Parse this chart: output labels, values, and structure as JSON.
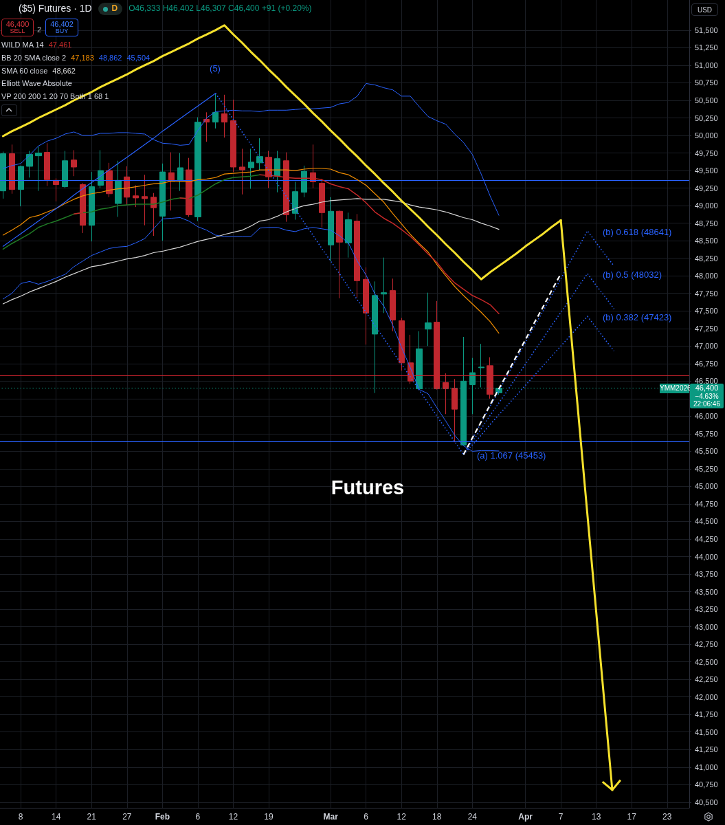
{
  "chart_data": {
    "type": "candlestick",
    "title": "Futures",
    "subtitle": "($5) Futures · 1D",
    "categories": [
      null,
      null,
      "8",
      null,
      null,
      null,
      "14",
      null,
      null,
      null,
      "21",
      null,
      null,
      null,
      "27",
      null,
      null,
      null,
      "Feb",
      null,
      null,
      null,
      "6",
      null,
      null,
      null,
      "12",
      null,
      null,
      null,
      "19",
      null,
      null,
      null,
      null,
      null,
      null,
      "Mar",
      null,
      null,
      null,
      "6",
      null,
      null,
      null,
      "12",
      null,
      null,
      null,
      "18",
      null,
      null,
      null,
      "24",
      null,
      null,
      null,
      null,
      null,
      "Apr",
      null,
      null,
      null,
      "7",
      null,
      null,
      null,
      "13",
      null,
      null,
      null,
      "17",
      null,
      null,
      null,
      "23",
      null,
      null
    ],
    "ohlc": [
      [
        49210,
        49770,
        49100,
        49740
      ],
      [
        49740,
        49870,
        49170,
        49230
      ],
      [
        49230,
        49570,
        48990,
        49560
      ],
      [
        49560,
        49780,
        49400,
        49730
      ],
      [
        49710,
        49840,
        49210,
        49750
      ],
      [
        49760,
        49890,
        49280,
        49370
      ],
      [
        49360,
        49390,
        49060,
        49300
      ],
      [
        49270,
        49780,
        49250,
        49640
      ],
      [
        49650,
        49790,
        49420,
        49550
      ],
      [
        49300,
        49320,
        48610,
        48720
      ],
      [
        48720,
        49480,
        48490,
        49270
      ],
      [
        49290,
        49790,
        49250,
        49500
      ],
      [
        49500,
        49610,
        49120,
        49170
      ],
      [
        49030,
        49640,
        48840,
        49360
      ],
      [
        49410,
        49560,
        49010,
        49120
      ],
      [
        49140,
        49290,
        48980,
        49110
      ],
      [
        49130,
        49440,
        48720,
        49100
      ],
      [
        49120,
        49180,
        48570,
        48970
      ],
      [
        48850,
        49600,
        48500,
        49480
      ],
      [
        49470,
        49760,
        48930,
        49350
      ],
      [
        49360,
        49750,
        49210,
        49540
      ],
      [
        49510,
        49680,
        48840,
        48870
      ],
      [
        48840,
        50260,
        48780,
        50190
      ],
      [
        50230,
        50330,
        49910,
        50190
      ],
      [
        50190,
        50590,
        50100,
        50330
      ],
      [
        50310,
        50580,
        49970,
        50190
      ],
      [
        50210,
        50510,
        49480,
        49550
      ],
      [
        49550,
        49810,
        49160,
        49510
      ],
      [
        49540,
        49810,
        49240,
        49620
      ],
      [
        49610,
        49960,
        49500,
        49700
      ],
      [
        49690,
        49780,
        49250,
        49410
      ],
      [
        49420,
        49780,
        49190,
        49670
      ],
      [
        49640,
        49760,
        48770,
        48870
      ],
      [
        48890,
        49340,
        48800,
        49200
      ],
      [
        49190,
        49570,
        49120,
        49490
      ],
      [
        49470,
        49870,
        49250,
        49340
      ],
      [
        49320,
        49380,
        48690,
        48900
      ],
      [
        48440,
        49120,
        48210,
        48920
      ],
      [
        48920,
        48930,
        47680,
        48480
      ],
      [
        48470,
        48900,
        48260,
        48800
      ],
      [
        48780,
        48880,
        47690,
        47930
      ],
      [
        47950,
        48120,
        47020,
        47470
      ],
      [
        47170,
        47920,
        46330,
        47720
      ],
      [
        47740,
        48260,
        47470,
        47760
      ],
      [
        47790,
        47960,
        47210,
        47370
      ],
      [
        47360,
        47400,
        46650,
        46760
      ],
      [
        46760,
        47160,
        46460,
        46500
      ],
      [
        46390,
        47210,
        46390,
        46960
      ],
      [
        47240,
        47760,
        47000,
        47330
      ],
      [
        47340,
        47640,
        46380,
        46390
      ],
      [
        46480,
        46610,
        46030,
        46390
      ],
      [
        46400,
        46530,
        45630,
        46100
      ],
      [
        45590,
        47130,
        45580,
        46500
      ],
      [
        46450,
        46830,
        46030,
        46620
      ],
      [
        46690,
        47030,
        46410,
        46700
      ],
      [
        46720,
        46840,
        46250,
        46310
      ],
      [
        46333,
        46402,
        46307,
        46400
      ],
      null,
      null,
      null,
      null,
      null,
      null,
      null,
      null,
      null,
      null,
      null,
      null,
      null,
      null,
      null,
      null,
      null,
      null,
      null,
      null,
      null
    ],
    "colors": [
      "#0b9981",
      "#c1272f",
      "#0b9981",
      "#0b9981",
      "#0b9981",
      "#c1272f",
      "#c1272f",
      "#0b9981",
      "#c1272f",
      "#c1272f",
      "#0b9981",
      "#0b9981",
      "#c1272f",
      "#0b9981",
      "#c1272f",
      "#c1272f",
      "#c1272f",
      "#c1272f",
      "#0b9981",
      "#c1272f",
      "#0b9981",
      "#c1272f",
      "#0b9981",
      "#c1272f",
      "#0b9981",
      "#c1272f",
      "#c1272f",
      "#c1272f",
      "#0b9981",
      "#0b9981",
      "#c1272f",
      "#0b9981",
      "#c1272f",
      "#0b9981",
      "#0b9981",
      "#c1272f",
      "#c1272f",
      "#0b9981",
      "#c1272f",
      "#0b9981",
      "#c1272f",
      "#c1272f",
      "#0b9981",
      "#0b9981",
      "#c1272f",
      "#c1272f",
      "#c1272f",
      "#0b9981",
      "#0b9981",
      "#c1272f",
      "#c1272f",
      "#c1272f",
      "#0b9981",
      "#0b9981",
      "#0b9981",
      "#c1272f",
      "#0b9981",
      null,
      null,
      null,
      null,
      null,
      null,
      null,
      null,
      null,
      null,
      null,
      null,
      null,
      null,
      null,
      null,
      null,
      null,
      null,
      null,
      null
    ],
    "series": [
      {
        "type": "line",
        "color": "#2962ff",
        "values": [
          47670,
          47750,
          47890,
          47920,
          47880,
          47920,
          47970,
          48020,
          48130,
          48210,
          48290,
          48340,
          48390,
          48410,
          48420,
          48470,
          48530,
          48670,
          48810,
          48820,
          48830,
          48780,
          48700,
          48650,
          48580,
          48560,
          48560,
          48560,
          48560,
          48680,
          48690,
          48690,
          48650,
          48630,
          48670,
          48690,
          48670,
          48650,
          48570,
          48470,
          48210,
          48010,
          47740,
          47570,
          47300,
          46980,
          46690,
          46380,
          46320,
          46120,
          45930,
          45730,
          45580,
          45500,
          45510,
          45510,
          45504,
          null,
          null,
          null,
          null,
          null,
          null,
          null,
          null,
          null,
          null,
          null,
          null,
          null,
          null,
          null,
          null,
          null,
          null,
          null,
          null,
          null
        ]
      },
      {
        "type": "line",
        "color": "#2962ff",
        "values": [
          49530,
          49570,
          49600,
          49720,
          49850,
          49920,
          49960,
          50020,
          50050,
          50000,
          50000,
          50030,
          50030,
          50040,
          50040,
          50030,
          50020,
          49940,
          49890,
          49880,
          49860,
          49870,
          50070,
          50250,
          50340,
          50350,
          50360,
          50350,
          50350,
          50340,
          50360,
          50360,
          50360,
          50370,
          50380,
          50380,
          50390,
          50400,
          50450,
          50470,
          50560,
          50740,
          50720,
          50680,
          50650,
          50560,
          50560,
          50410,
          50270,
          50210,
          50160,
          50020,
          49900,
          49730,
          49450,
          49140,
          48862,
          null,
          null,
          null,
          null,
          null,
          null,
          null,
          null,
          null,
          null,
          null,
          null,
          null,
          null,
          null,
          null,
          null,
          null,
          null,
          null,
          null
        ]
      },
      {
        "type": "line",
        "color": "#ef8c00",
        "values": [
          48580,
          48650,
          48730,
          48830,
          48860,
          48910,
          48960,
          49030,
          49090,
          49140,
          49170,
          49190,
          49220,
          49240,
          49250,
          49270,
          49290,
          49310,
          49320,
          49350,
          49340,
          49340,
          49370,
          49380,
          49400,
          49450,
          49460,
          49470,
          49480,
          49510,
          49510,
          49510,
          49510,
          49500,
          49520,
          49530,
          49530,
          49520,
          49470,
          49440,
          49370,
          49290,
          49170,
          49050,
          48890,
          48740,
          48590,
          48460,
          48340,
          48160,
          48000,
          47850,
          47720,
          47600,
          47480,
          47350,
          47183,
          null,
          null,
          null,
          null,
          null,
          null,
          null,
          null,
          null,
          null,
          null,
          null,
          null,
          null,
          null,
          null,
          null,
          null,
          null,
          null,
          null
        ]
      },
      {
        "type": "line",
        "color": "#d6d6d6",
        "values": [
          47600,
          47660,
          47710,
          47770,
          47820,
          47870,
          47920,
          47980,
          48030,
          48080,
          48130,
          48150,
          48180,
          48210,
          48240,
          48260,
          48290,
          48330,
          48350,
          48380,
          48410,
          48450,
          48490,
          48520,
          48550,
          48590,
          48620,
          48650,
          48710,
          48780,
          48800,
          48850,
          48910,
          48960,
          49000,
          49020,
          49050,
          49070,
          49080,
          49090,
          49100,
          49090,
          49090,
          49090,
          49070,
          49050,
          49010,
          48980,
          48960,
          48940,
          48910,
          48870,
          48830,
          48800,
          48750,
          48710,
          48662,
          null,
          null,
          null,
          null,
          null,
          null,
          null,
          null,
          null,
          null,
          null,
          null,
          null,
          null,
          null,
          null,
          null,
          null,
          null,
          null,
          null
        ]
      },
      {
        "type": "line",
        "color": "#1f7a25",
        "values": [
          48380,
          48460,
          48530,
          48600,
          48690,
          48740,
          48780,
          48830,
          48880,
          48900,
          48910,
          48950,
          48970,
          49000,
          49010,
          49020,
          49020,
          49020,
          49050,
          49090,
          49110,
          49100,
          49150,
          49230,
          49310,
          49370,
          49400,
          49410,
          49420,
          49440,
          null,
          null,
          null,
          null,
          null,
          null,
          null,
          null,
          null,
          null,
          null,
          null,
          null,
          null,
          null,
          null,
          null,
          null,
          null,
          null,
          null,
          null,
          null,
          null,
          null,
          null,
          null,
          null,
          null,
          null,
          null,
          null,
          null,
          null,
          null,
          null,
          null,
          null,
          null,
          null,
          null,
          null,
          null,
          null,
          null,
          null,
          null,
          null
        ]
      },
      {
        "type": "line",
        "color": "#c62828",
        "values": [
          null,
          null,
          null,
          null,
          null,
          null,
          null,
          null,
          48880,
          48900,
          null,
          null,
          null,
          null,
          null,
          null,
          null,
          null,
          null,
          null,
          49110,
          49100,
          null,
          null,
          null,
          null,
          null,
          null,
          null,
          49440,
          49430,
          49420,
          49400,
          49390,
          49390,
          49390,
          49370,
          49310,
          49270,
          49240,
          49150,
          49040,
          48910,
          48820,
          48750,
          48660,
          48560,
          48440,
          48310,
          48190,
          48030,
          47900,
          47810,
          47720,
          47660,
          47590,
          47461,
          null,
          null,
          null,
          null,
          null,
          null,
          null,
          null,
          null,
          null,
          null,
          null,
          null,
          null,
          null,
          null,
          null,
          null,
          null,
          null,
          null
        ]
      },
      {
        "type": "line",
        "color": "#2962ff",
        "values": [
          48420,
          48510,
          48600,
          48690,
          48780,
          48870,
          48960,
          49050,
          49150,
          49240,
          49330,
          49420,
          49510,
          49600,
          49690,
          49780,
          49870,
          49960,
          50060,
          50150,
          50240,
          50330,
          50420,
          50510,
          50600,
          null,
          null,
          null,
          null,
          null,
          null,
          null,
          null,
          null,
          null,
          null,
          null,
          null,
          null,
          null,
          null,
          null,
          null,
          null,
          null,
          null,
          null,
          null,
          null,
          null,
          null,
          null,
          null,
          null,
          null,
          null,
          null,
          null,
          null,
          null,
          null,
          null,
          null,
          null,
          null,
          null,
          null,
          null,
          null,
          null,
          null,
          null,
          null,
          null,
          null,
          null,
          null,
          null
        ]
      },
      {
        "type": "line",
        "color": "#2962ff",
        "line_style": "dotted",
        "values": [
          null,
          null,
          null,
          null,
          null,
          null,
          null,
          null,
          null,
          null,
          null,
          null,
          null,
          null,
          null,
          null,
          null,
          null,
          null,
          null,
          null,
          null,
          null,
          null,
          50600,
          50420,
          50230,
          50050,
          49870,
          49680,
          49500,
          49310,
          49130,
          48950,
          48760,
          48580,
          48390,
          48210,
          48030,
          47840,
          47660,
          47480,
          47290,
          47110,
          46920,
          46740,
          46560,
          46370,
          46190,
          46000,
          45820,
          45640,
          45453,
          null,
          null,
          null,
          null,
          null,
          null,
          null,
          null,
          null,
          null,
          null,
          null,
          null,
          null,
          null,
          null,
          null,
          null,
          null,
          null,
          null,
          null,
          null,
          null,
          null
        ]
      },
      {
        "type": "line",
        "color": "#2962ff",
        "line_style": "dotted",
        "values": [
          null,
          null,
          null,
          null,
          null,
          null,
          null,
          null,
          null,
          null,
          null,
          null,
          null,
          null,
          null,
          null,
          null,
          null,
          null,
          null,
          null,
          null,
          null,
          null,
          null,
          null,
          null,
          null,
          null,
          null,
          null,
          null,
          null,
          null,
          null,
          null,
          null,
          null,
          null,
          null,
          null,
          null,
          null,
          null,
          null,
          null,
          null,
          null,
          null,
          null,
          null,
          null,
          45453,
          45680,
          45910,
          46140,
          46360,
          46590,
          46820,
          47050,
          47280,
          47500,
          47730,
          47960,
          48190,
          48410,
          48641,
          48470,
          48300,
          48140,
          null,
          null,
          null,
          null,
          null,
          null,
          null,
          null
        ]
      },
      {
        "type": "line",
        "color": "#2962ff",
        "line_style": "dotted",
        "values": [
          null,
          null,
          null,
          null,
          null,
          null,
          null,
          null,
          null,
          null,
          null,
          null,
          null,
          null,
          null,
          null,
          null,
          null,
          null,
          null,
          null,
          null,
          null,
          null,
          null,
          null,
          null,
          null,
          null,
          null,
          null,
          null,
          null,
          null,
          null,
          null,
          null,
          null,
          null,
          null,
          null,
          null,
          null,
          null,
          null,
          null,
          null,
          null,
          null,
          null,
          null,
          null,
          45453,
          45640,
          45820,
          46010,
          46190,
          46370,
          46560,
          46740,
          46930,
          47110,
          47300,
          47480,
          47660,
          47850,
          48032,
          47860,
          47700,
          47530,
          null,
          null,
          null,
          null,
          null,
          null,
          null,
          null
        ]
      },
      {
        "type": "line",
        "color": "#2962ff",
        "line_style": "dotted",
        "values": [
          null,
          null,
          null,
          null,
          null,
          null,
          null,
          null,
          null,
          null,
          null,
          null,
          null,
          null,
          null,
          null,
          null,
          null,
          null,
          null,
          null,
          null,
          null,
          null,
          null,
          null,
          null,
          null,
          null,
          null,
          null,
          null,
          null,
          null,
          null,
          null,
          null,
          null,
          null,
          null,
          null,
          null,
          null,
          null,
          null,
          null,
          null,
          null,
          null,
          null,
          null,
          null,
          45453,
          45590,
          45730,
          45880,
          46020,
          46160,
          46300,
          46440,
          46580,
          46720,
          46860,
          47000,
          47140,
          47280,
          47423,
          47260,
          47090,
          46930,
          null,
          null,
          null,
          null,
          null,
          null,
          null,
          null
        ]
      },
      {
        "type": "line",
        "color": "#ffffff",
        "line_style": "dashed",
        "values": [
          null,
          null,
          null,
          null,
          null,
          null,
          null,
          null,
          null,
          null,
          null,
          null,
          null,
          null,
          null,
          null,
          null,
          null,
          null,
          null,
          null,
          null,
          null,
          null,
          null,
          null,
          null,
          null,
          null,
          null,
          null,
          null,
          null,
          null,
          null,
          null,
          null,
          null,
          null,
          null,
          null,
          null,
          null,
          null,
          null,
          null,
          null,
          null,
          null,
          null,
          null,
          null,
          45453,
          45690,
          45920,
          46160,
          46390,
          46620,
          46860,
          47090,
          47330,
          47560,
          47800,
          48030,
          null,
          null,
          null,
          null,
          null,
          null,
          null,
          null,
          null,
          null,
          null,
          null,
          null,
          null
        ]
      },
      {
        "type": "line",
        "color": "#f5e12c",
        "values": [
          49990,
          50060,
          50120,
          50180,
          50250,
          50310,
          50370,
          50430,
          50500,
          50560,
          50620,
          50690,
          50750,
          50810,
          50870,
          50940,
          51000,
          51060,
          51130,
          51190,
          51250,
          51310,
          51380,
          51440,
          51500,
          51570,
          51440,
          51320,
          51190,
          51070,
          50940,
          50820,
          50690,
          50570,
          50450,
          50320,
          50200,
          50070,
          49950,
          49820,
          49700,
          49570,
          49450,
          49320,
          49200,
          49070,
          48950,
          48830,
          48700,
          48580,
          48450,
          48330,
          48200,
          48080,
          47950,
          48050,
          48140,
          48230,
          48320,
          48420,
          48510,
          48600,
          48700,
          48790,
          null,
          null,
          null,
          null,
          null,
          null,
          null,
          null,
          null,
          null,
          null,
          null,
          null,
          null
        ]
      }
    ],
    "ylim": [
      40420,
      51930
    ],
    "yticks": [
      {
        "value": 40500,
        "label": "40,500"
      },
      {
        "value": 40750,
        "label": "40,750"
      },
      {
        "value": 41000,
        "label": "41,000"
      },
      {
        "value": 41250,
        "label": "41,250"
      },
      {
        "value": 41500,
        "label": "41,500"
      },
      {
        "value": 41750,
        "label": "41,750"
      },
      {
        "value": 42000,
        "label": "42,000"
      },
      {
        "value": 42250,
        "label": "42,250"
      },
      {
        "value": 42500,
        "label": "42,500"
      },
      {
        "value": 42750,
        "label": "42,750"
      },
      {
        "value": 43000,
        "label": "43,000"
      },
      {
        "value": 43250,
        "label": "43,250"
      },
      {
        "value": 43500,
        "label": "43,500"
      },
      {
        "value": 43750,
        "label": "43,750"
      },
      {
        "value": 44000,
        "label": "44,000"
      },
      {
        "value": 44250,
        "label": "44,250"
      },
      {
        "value": 44500,
        "label": "44,500"
      },
      {
        "value": 44750,
        "label": "44,750"
      },
      {
        "value": 45000,
        "label": "45,000"
      },
      {
        "value": 45250,
        "label": "45,250"
      },
      {
        "value": 45500,
        "label": "45,500"
      },
      {
        "value": 45750,
        "label": "45,750"
      },
      {
        "value": 46000,
        "label": "46,000"
      },
      {
        "value": 46250,
        "label": null
      },
      {
        "value": 46500,
        "label": "46,500"
      },
      {
        "value": 46750,
        "label": "46,750"
      },
      {
        "value": 47000,
        "label": "47,000"
      },
      {
        "value": 47250,
        "label": "47,250"
      },
      {
        "value": 47500,
        "label": "47,500"
      },
      {
        "value": 47750,
        "label": "47,750"
      },
      {
        "value": 48000,
        "label": "48,000"
      },
      {
        "value": 48250,
        "label": "48,250"
      },
      {
        "value": 48500,
        "label": "48,500"
      },
      {
        "value": 48750,
        "label": "48,750"
      },
      {
        "value": 49000,
        "label": "49,000"
      },
      {
        "value": 49250,
        "label": "49,250"
      },
      {
        "value": 49500,
        "label": "49,500"
      },
      {
        "value": 49750,
        "label": "49,750"
      },
      {
        "value": 50000,
        "label": "50,000"
      },
      {
        "value": 50250,
        "label": "50,250"
      },
      {
        "value": 50500,
        "label": "50,500"
      },
      {
        "value": 50750,
        "label": "50,750"
      },
      {
        "value": 51000,
        "label": "51,000"
      },
      {
        "value": 51250,
        "label": "51,250"
      },
      {
        "value": 51500,
        "label": "51,500"
      }
    ],
    "ref_lines": [
      {
        "axis": "y",
        "value": 49360,
        "color": "#2962ff"
      },
      {
        "axis": "y",
        "value": 46580,
        "color": "#c8232d"
      },
      {
        "axis": "y",
        "value": 46400,
        "color": "#0b9981",
        "line_style": "dotted"
      },
      {
        "axis": "y",
        "value": 45635,
        "color": "#2962ff"
      }
    ],
    "grid": true,
    "annotations": [
      "D",
      "O46,333 H46,402 L46,307 C46,400 +91 (+0.20%)",
      "46,400",
      "SELL",
      "2",
      "46,402",
      "BUY",
      "WILD MA 14",
      "47,461",
      "BB 20 SMA close 2",
      "47,183",
      "48,862",
      "45,504",
      "SMA 60 close",
      "48,662",
      "Elliott Wave Absolute",
      "VP 200 200 1 20 70 Both 1 68 1",
      "(5)",
      "(b) 0.618 (48641)",
      "(b) 0.5 (48032)",
      "(b) 0.382 (47423)",
      "(a) 1.067 (45453)",
      "YMM2026",
      "46,400",
      "−4.63%",
      "22:06:46",
      "USD"
    ]
  }
}
